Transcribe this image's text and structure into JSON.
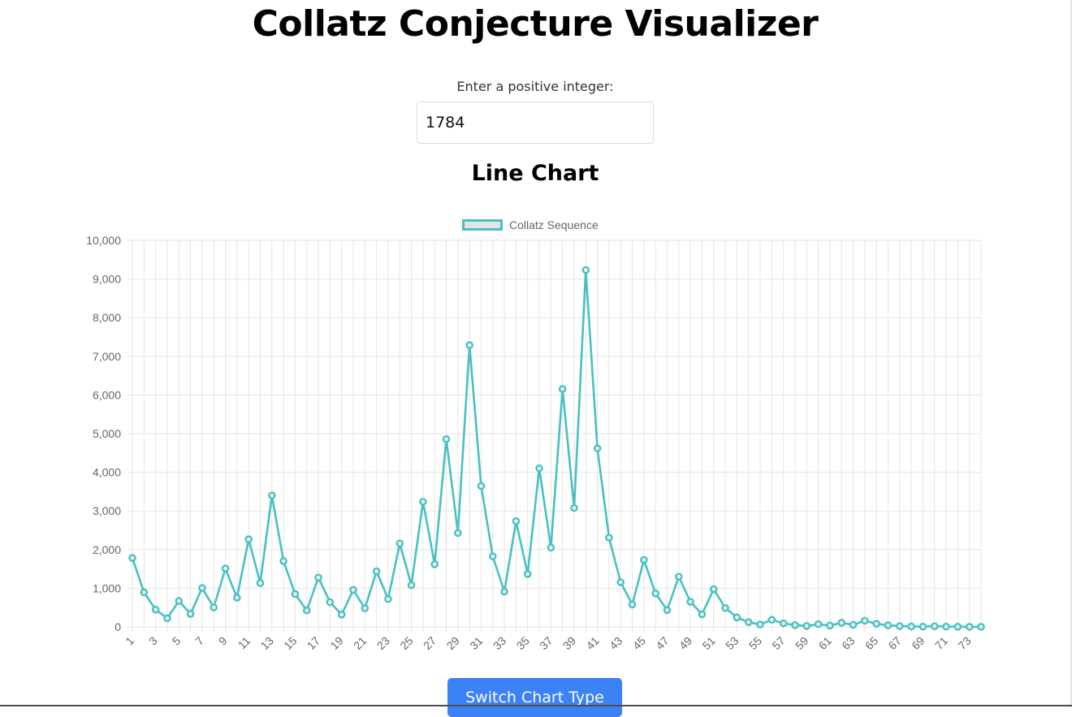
{
  "header": {
    "title": "Collatz Conjecture Visualizer"
  },
  "input": {
    "label": "Enter a positive integer:",
    "value": "1784"
  },
  "chart_title": "Line Chart",
  "switch_button": {
    "label": "Switch Chart Type"
  },
  "colors": {
    "series_line": "#4bc0c0",
    "legend_fill": "#e4e4e4",
    "button_bg": "#3b82f6",
    "grid": "#e5e5e5"
  },
  "chart_data": {
    "type": "line",
    "title": "",
    "xlabel": "",
    "ylabel": "",
    "ylim": [
      0,
      10000
    ],
    "y_ticks": [
      "10,000",
      "9,000",
      "8,000",
      "7,000",
      "6,000",
      "5,000",
      "4,000",
      "3,000",
      "2,000",
      "1,000",
      "0"
    ],
    "x_tick_labels": [
      "1",
      "3",
      "5",
      "7",
      "9",
      "11",
      "13",
      "15",
      "17",
      "19",
      "21",
      "23",
      "25",
      "27",
      "29",
      "31",
      "33",
      "35",
      "37",
      "39",
      "41",
      "43",
      "45",
      "47",
      "49",
      "51",
      "53",
      "55",
      "57",
      "59",
      "61",
      "63",
      "65",
      "67",
      "69",
      "71",
      "73"
    ],
    "x": [
      1,
      2,
      3,
      4,
      5,
      6,
      7,
      8,
      9,
      10,
      11,
      12,
      13,
      14,
      15,
      16,
      17,
      18,
      19,
      20,
      21,
      22,
      23,
      24,
      25,
      26,
      27,
      28,
      29,
      30,
      31,
      32,
      33,
      34,
      35,
      36,
      37,
      38,
      39,
      40,
      41,
      42,
      43,
      44,
      45,
      46,
      47,
      48,
      49,
      50,
      51,
      52,
      53,
      54,
      55,
      56,
      57,
      58,
      59,
      60,
      61,
      62,
      63,
      64,
      65,
      66,
      67,
      68,
      69,
      70,
      71,
      72,
      73,
      74
    ],
    "legend_position": "top",
    "grid": true,
    "series": [
      {
        "name": "Collatz Sequence",
        "values": [
          1784,
          892,
          446,
          223,
          670,
          335,
          1006,
          503,
          1510,
          755,
          2266,
          1133,
          3400,
          1700,
          850,
          425,
          1276,
          638,
          319,
          958,
          479,
          1438,
          719,
          2158,
          1079,
          3238,
          1619,
          4858,
          2429,
          7288,
          3644,
          1822,
          911,
          2734,
          1367,
          4102,
          2051,
          6154,
          3077,
          9232,
          4616,
          2308,
          1154,
          577,
          1732,
          866,
          433,
          1300,
          650,
          325,
          976,
          488,
          244,
          122,
          61,
          184,
          92,
          46,
          23,
          70,
          35,
          106,
          53,
          160,
          80,
          40,
          20,
          10,
          5,
          16,
          8,
          4,
          2,
          1
        ]
      }
    ]
  }
}
